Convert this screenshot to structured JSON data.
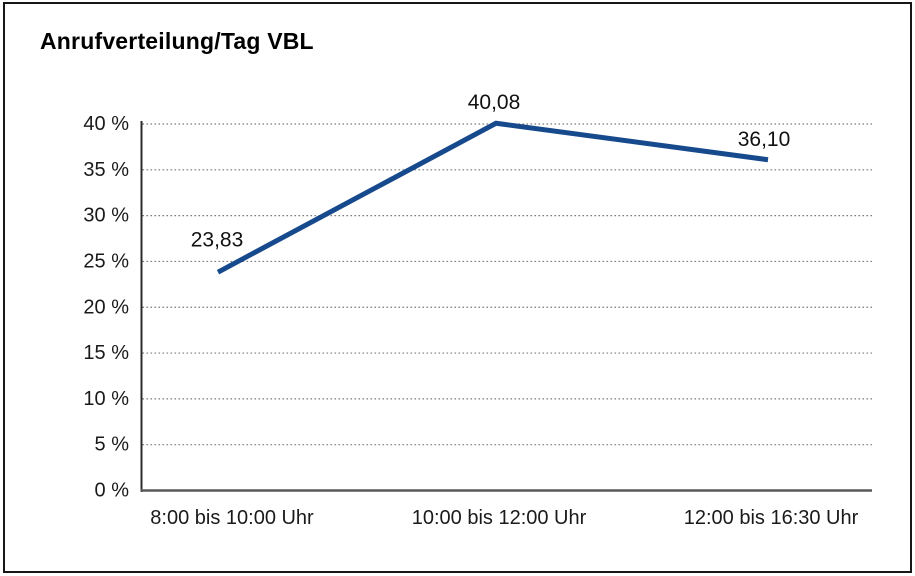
{
  "title": "Anrufverteilung/Tag VBL",
  "panel": {
    "background": "#ffffff",
    "border_color": "#161616"
  },
  "chart_data": {
    "type": "line",
    "title": "Anrufverteilung/Tag VBL",
    "categories": [
      "8:00 bis 10:00 Uhr",
      "10:00 bis 12:00 Uhr",
      "12:00 bis 16:30 Uhr"
    ],
    "values": [
      23.83,
      40.08,
      36.1
    ],
    "data_labels": [
      "23,83",
      "40,08",
      "36,10"
    ],
    "xlabel": "",
    "ylabel": "",
    "ylim": [
      0,
      40
    ],
    "ytick_step": 5,
    "ytick_labels": [
      "0 %",
      "5 %",
      "10 %",
      "15 %",
      "20 %",
      "25 %",
      "30 %",
      "35 %",
      "40 %"
    ],
    "grid": "horizontal-dotted",
    "gridline_color": "#7a7a7a",
    "axis_color": "#2b2b2b",
    "x_axis_color": "#58585a",
    "line_color": "#17498D",
    "label_color": "#1a1a1a",
    "legend_position": "none"
  }
}
